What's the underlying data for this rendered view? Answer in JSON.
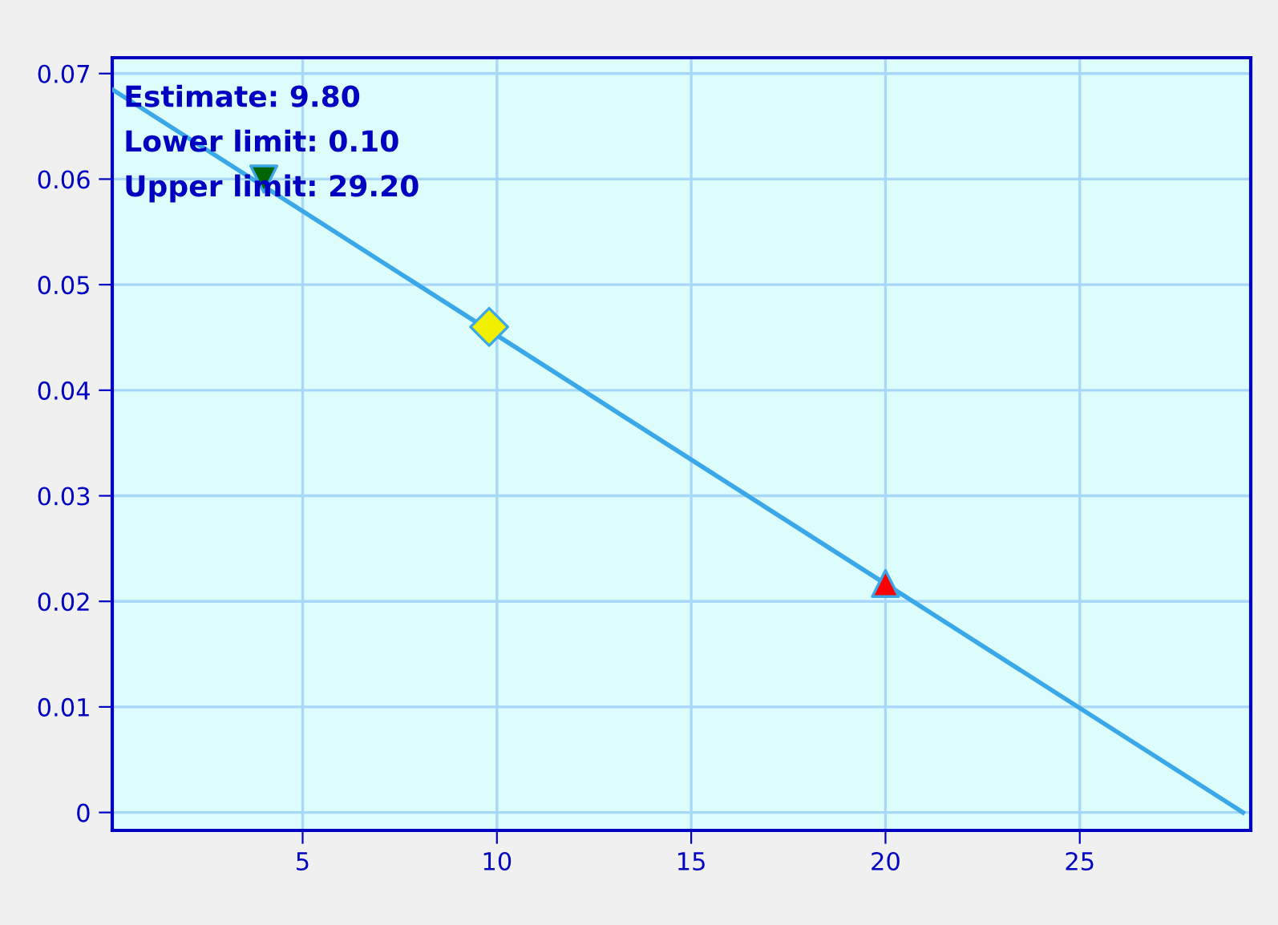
{
  "chart_data": {
    "type": "line",
    "series": [
      {
        "color": "#3aa8e8",
        "x": [
          0.1,
          29.2
        ],
        "values": [
          0.0685,
          0
        ],
        "marker": "none"
      },
      {
        "type": "scatter",
        "color": "#006400",
        "x": [
          4
        ],
        "values": [
          0.06
        ],
        "marker": "triangle_down"
      },
      {
        "type": "scatter",
        "color": "#f0f000",
        "x": [
          9.8
        ],
        "values": [
          0.046
        ],
        "marker": "diamond"
      },
      {
        "type": "scatter",
        "color": "#ff0000",
        "x": [
          20
        ],
        "values": [
          0.0217
        ],
        "marker": "triangle"
      }
    ],
    "xlim": [
      0.1,
      29.4
    ],
    "ylim": [
      -0.0017,
      0.0715
    ],
    "xticks": [
      5,
      10,
      15,
      20,
      25
    ],
    "yticks": [
      0,
      0.01,
      0.02,
      0.03,
      0.04,
      0.05,
      0.06,
      0.07
    ],
    "grid": true,
    "annotations": [
      "Estimate: 9.80",
      "Lower limit: 0.10",
      "Upper limit: 29.20"
    ]
  }
}
